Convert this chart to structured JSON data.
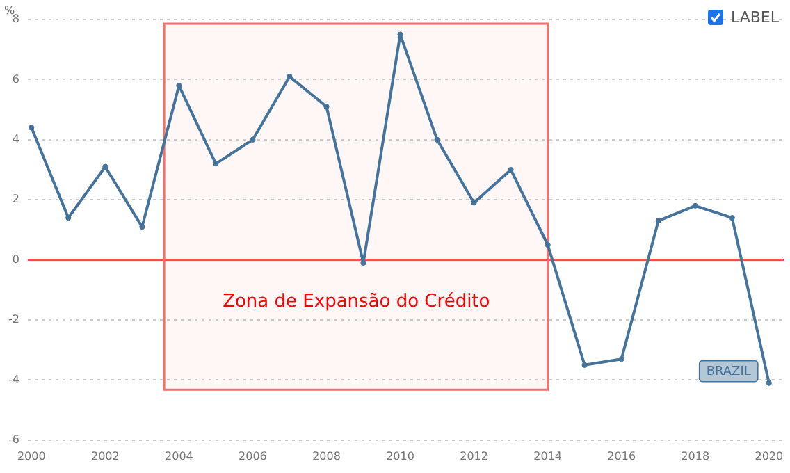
{
  "chart_data": {
    "type": "line",
    "ylabel": "%",
    "x": [
      2000,
      2001,
      2002,
      2003,
      2004,
      2005,
      2006,
      2007,
      2008,
      2009,
      2010,
      2011,
      2012,
      2013,
      2014,
      2015,
      2016,
      2017,
      2018,
      2019,
      2020
    ],
    "series": [
      {
        "name": "BRAZIL",
        "color": "#44739b",
        "values": [
          4.4,
          1.4,
          3.1,
          1.1,
          5.8,
          3.2,
          4.0,
          6.1,
          5.1,
          -0.1,
          7.5,
          4.0,
          1.9,
          3.0,
          0.5,
          -3.5,
          -3.3,
          1.3,
          1.8,
          1.4,
          -4.1
        ]
      }
    ],
    "xlim": [
      1999.9,
      2020.4
    ],
    "xticks": [
      2000,
      2002,
      2004,
      2006,
      2008,
      2010,
      2012,
      2014,
      2016,
      2018,
      2020
    ],
    "ylim": [
      -6,
      8
    ],
    "yticks": [
      -6,
      -4,
      -2,
      0,
      2,
      4,
      6,
      8
    ],
    "grid": "y",
    "legend": false,
    "marker": "circle",
    "line_style": "solid",
    "ref_lines": [
      {
        "axis": "y",
        "value": 0,
        "color": "#e8514f"
      }
    ],
    "bands": [
      {
        "axis": "x",
        "from": 2003.6,
        "to": 2014,
        "label": "Zona de Expansão do Crédito",
        "color": "#ff6b6b"
      }
    ],
    "annotations": [
      "LABEL"
    ]
  }
}
